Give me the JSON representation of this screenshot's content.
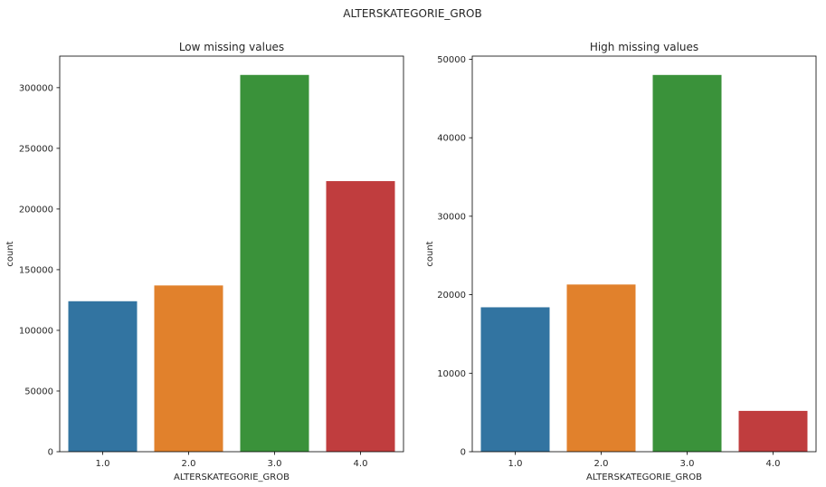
{
  "suptitle": "ALTERSKATEGORIE_GROB",
  "colors": [
    "#3274a1",
    "#e1812c",
    "#3a923a",
    "#c03d3e"
  ],
  "chart_data": [
    {
      "type": "bar",
      "title": "Low missing values",
      "xlabel": "ALTERSKATEGORIE_GROB",
      "ylabel": "count",
      "categories": [
        "1.0",
        "2.0",
        "3.0",
        "4.0"
      ],
      "values": [
        124000,
        137000,
        310500,
        223000
      ],
      "ylim": [
        0,
        326000
      ],
      "yticks": [
        0,
        50000,
        100000,
        150000,
        200000,
        250000,
        300000
      ],
      "ytick_labels": [
        "0",
        "50000",
        "100000",
        "150000",
        "200000",
        "250000",
        "300000"
      ],
      "grid": false
    },
    {
      "type": "bar",
      "title": "High missing values",
      "xlabel": "ALTERSKATEGORIE_GROB",
      "ylabel": "count",
      "categories": [
        "1.0",
        "2.0",
        "3.0",
        "4.0"
      ],
      "values": [
        18400,
        21300,
        48000,
        5200
      ],
      "ylim": [
        0,
        50400
      ],
      "yticks": [
        0,
        10000,
        20000,
        30000,
        40000,
        50000
      ],
      "ytick_labels": [
        "0",
        "10000",
        "20000",
        "30000",
        "40000",
        "50000"
      ],
      "grid": false
    }
  ]
}
